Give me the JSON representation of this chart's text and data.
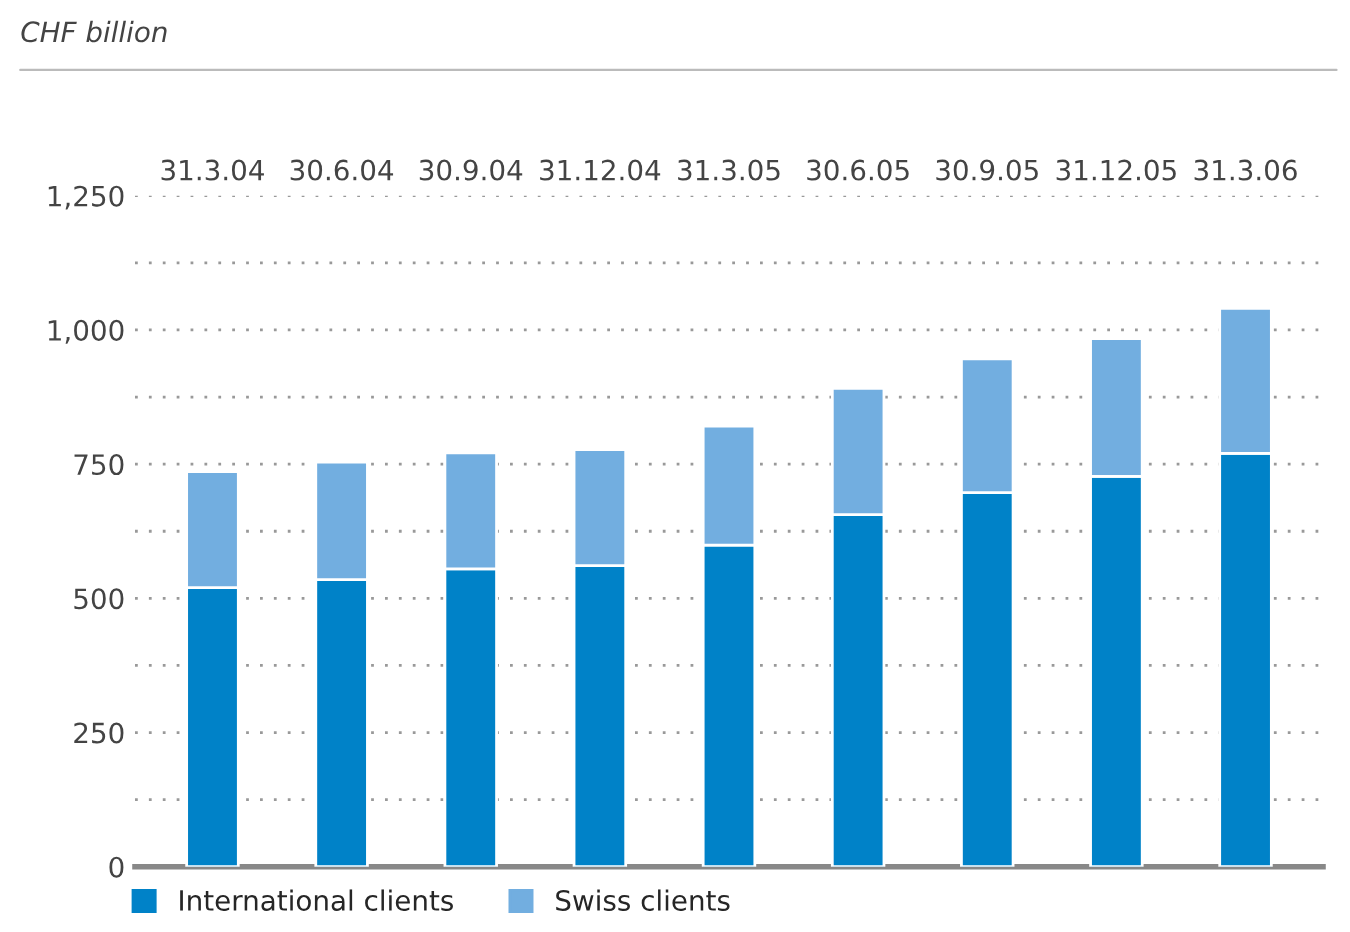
{
  "chart_data": {
    "type": "bar",
    "stacked": true,
    "ylabel": "CHF billion",
    "categories": [
      "31.3.04",
      "30.6.04",
      "30.9.04",
      "31.12.04",
      "31.3.05",
      "30.6.05",
      "30.9.05",
      "31.12.05",
      "31.3.06"
    ],
    "series": [
      {
        "name": "International clients",
        "color": "#0082c8",
        "values": [
          520,
          535,
          555,
          561,
          599,
          656,
          697,
          727,
          770
        ]
      },
      {
        "name": "Swiss clients",
        "color": "#72aee0",
        "values": [
          216,
          219,
          216,
          216,
          222,
          235,
          249,
          257,
          270
        ]
      }
    ],
    "ylim": [
      0,
      1250
    ],
    "yticks": [
      0,
      {
        "value": 125,
        "label": null
      },
      250,
      {
        "value": 375,
        "label": null
      },
      {
        "value": 500,
        "label": "500"
      },
      {
        "value": 625,
        "label": null
      },
      750,
      {
        "value": 875,
        "label": null
      },
      {
        "value": 1000,
        "label": "1,000"
      },
      {
        "value": 1125,
        "label": null
      },
      {
        "value": 1250,
        "label": "1,250"
      }
    ],
    "grid": "y",
    "legend": "bottom"
  }
}
